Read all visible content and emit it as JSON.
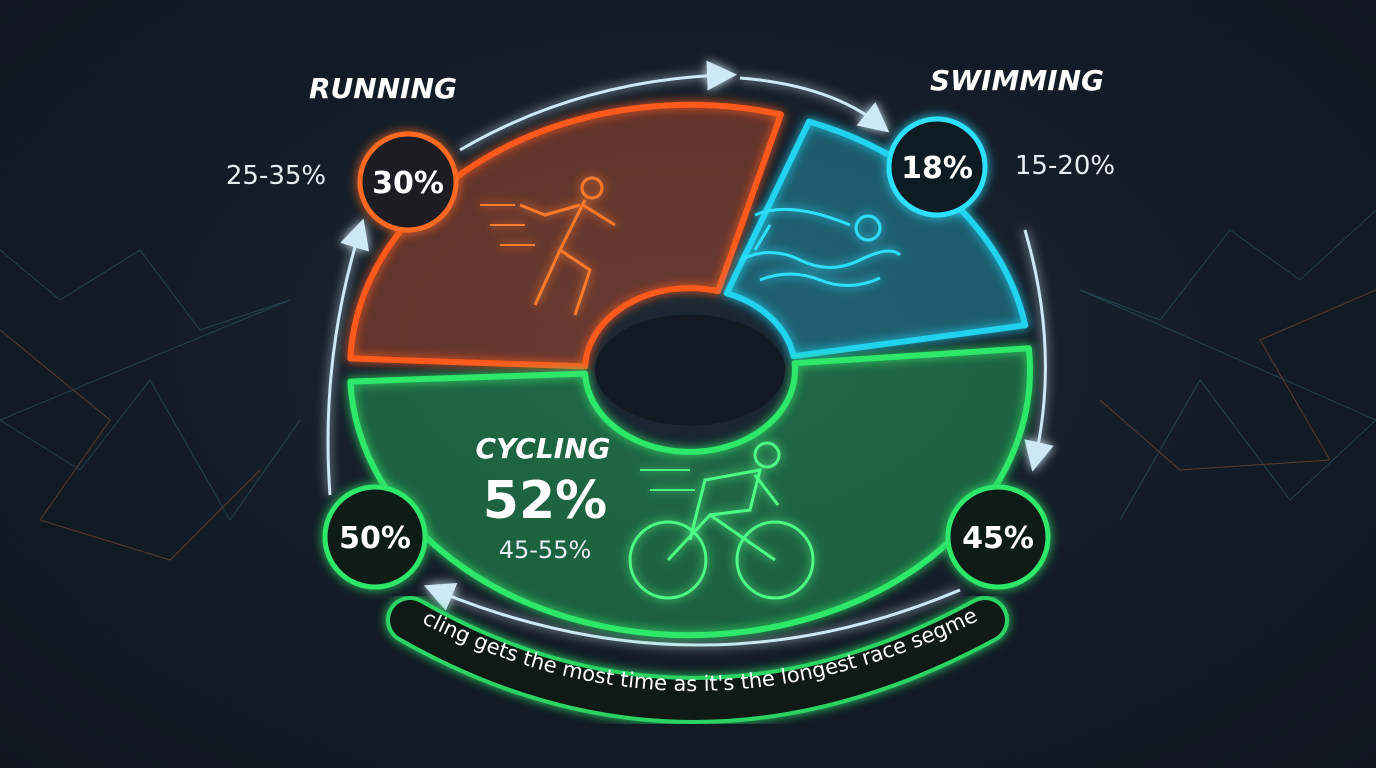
{
  "chart_data": {
    "type": "pie",
    "variant": "donut",
    "title": "",
    "slices": [
      {
        "label": "RUNNING",
        "value": 30,
        "value_label": "30%",
        "range": "25-35%",
        "color": "#ff5a1f",
        "icon": "runner-icon"
      },
      {
        "label": "SWIMMING",
        "value": 18,
        "value_label": "18%",
        "range": "15-20%",
        "color": "#22d3f0",
        "icon": "swimmer-icon"
      },
      {
        "label": "CYCLING",
        "value": 52,
        "value_label": "52%",
        "range": "45-55%",
        "color": "#2ee86a",
        "icon": "cyclist-icon"
      }
    ],
    "extra_badges": [
      "50%",
      "45%"
    ],
    "annotation": "Cycling gets the most time as it's the longest race segment"
  }
}
